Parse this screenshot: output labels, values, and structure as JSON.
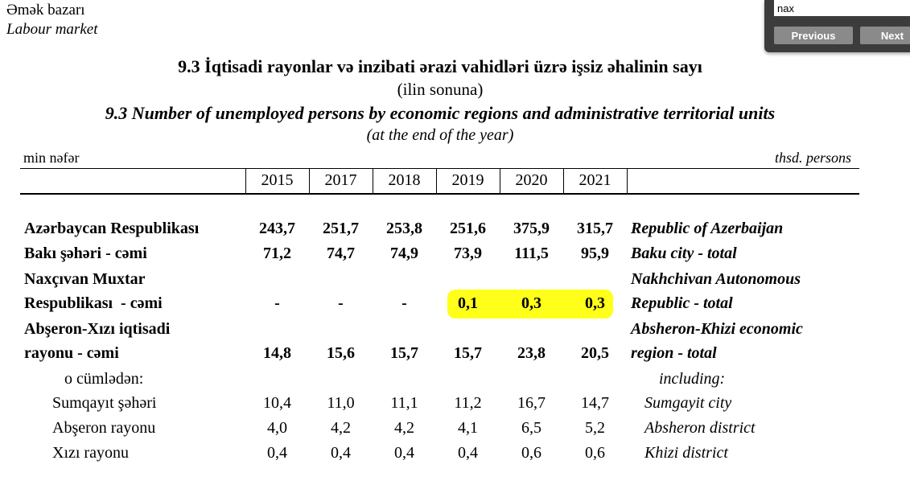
{
  "header": {
    "line1": "Əmək bazarı",
    "line2": "Labour market"
  },
  "title": {
    "az": "9.3 İqtisadi rayonlar və inzibati ərazi vahidləri üzrə işsiz əhalinin sayı",
    "az_sub": "(ilin sonuna)",
    "en": "9.3 Number of unemployed persons by economic regions and administrative territorial units",
    "en_sub": "(at the end of the year)"
  },
  "units": {
    "az": "min nəfər",
    "en": "thsd. persons"
  },
  "table": {
    "years": [
      "2015",
      "2017",
      "2018",
      "2019",
      "2020",
      "2021"
    ],
    "rows": [
      {
        "label_az": "Azərbaycan Respublikası",
        "label_en": "Republic of Azerbaijan",
        "values": [
          "243,7",
          "251,7",
          "253,8",
          "251,6",
          "375,9",
          "315,7"
        ]
      },
      {
        "label_az": "Bakı şəhəri - cəmi",
        "label_en": "Baku city - total",
        "values": [
          "71,2",
          "74,7",
          "74,9",
          "73,9",
          "111,5",
          "95,9"
        ]
      },
      {
        "label_az": "Naxçıvan Muxtar",
        "label_en": "Nakhchivan Autonomous"
      },
      {
        "label_az": "Respublikası  - cəmi",
        "label_en": "Republic - total",
        "values": [
          "-",
          "-",
          "-",
          "0,1",
          "0,3",
          "0,3"
        ]
      },
      {
        "label_az": "Abşeron-Xızı iqtisadi",
        "label_en": "Absheron-Khizi economic"
      },
      {
        "label_az": "rayonu - cəmi",
        "label_en": "region - total",
        "values": [
          "14,8",
          "15,6",
          "15,7",
          "15,7",
          "23,8",
          "20,5"
        ]
      },
      {
        "label_az": "o cümlədən:",
        "label_en": "including:"
      },
      {
        "label_az": "Sumqayıt şəhəri",
        "label_en": "Sumgayit city",
        "values": [
          "10,4",
          "11,0",
          "11,1",
          "11,2",
          "16,7",
          "14,7"
        ]
      },
      {
        "label_az": "Abşeron rayonu",
        "label_en": "Absheron district",
        "values": [
          "4,0",
          "4,2",
          "4,2",
          "4,1",
          "6,5",
          "5,2"
        ]
      },
      {
        "label_az": "Xızı rayonu",
        "label_en": "Khizi district",
        "values": [
          "0,4",
          "0,4",
          "0,4",
          "0,4",
          "0,6",
          "0,6"
        ]
      }
    ]
  },
  "find_bar": {
    "query": "nax",
    "previous_label": "Previous",
    "next_label": "Next"
  },
  "colors": {
    "highlight": "#ffff1a",
    "find_bar_bg": "#3c3c3c",
    "find_button_bg": "#8a8a8a"
  }
}
